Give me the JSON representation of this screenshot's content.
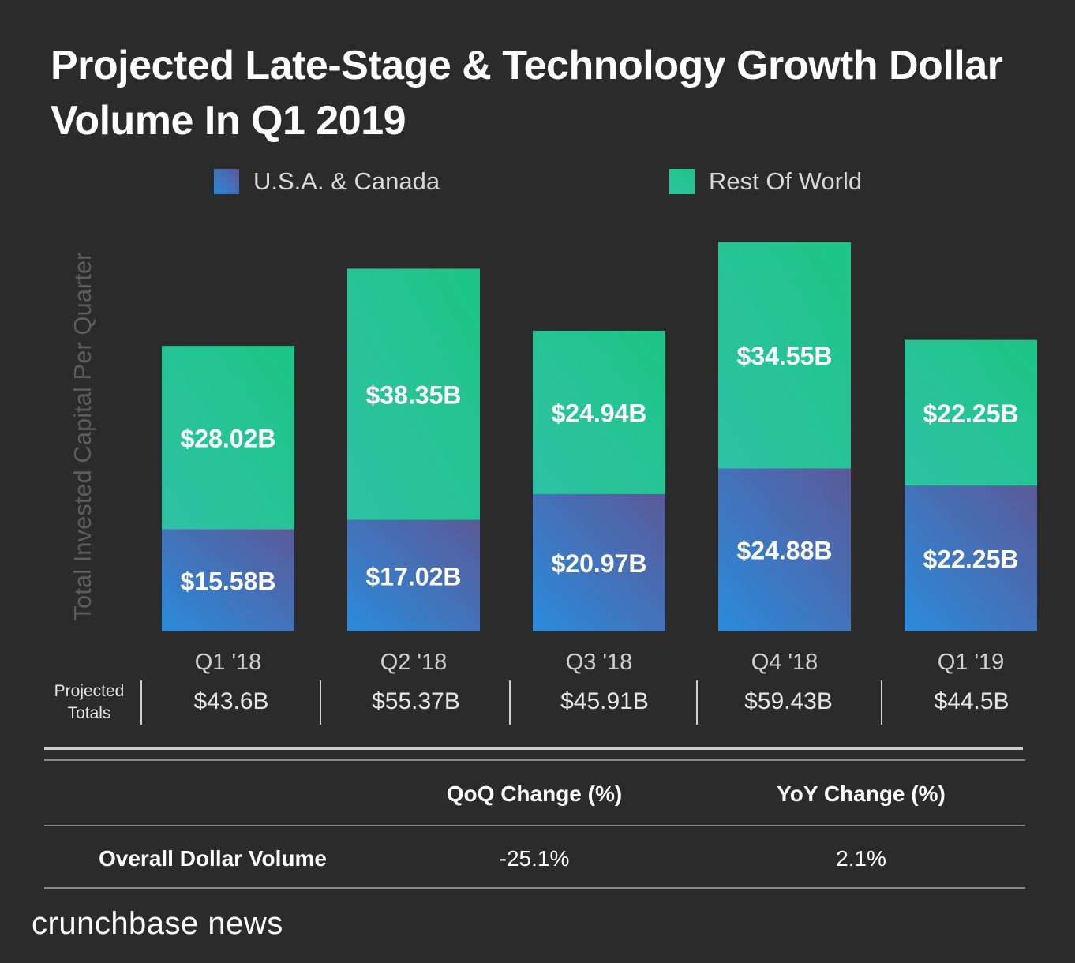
{
  "title": "Projected Late-Stage & Technology Growth Dollar Volume In Q1 2019",
  "legend": [
    {
      "label": "U.S.A. & Canada",
      "color": "#3f78c4"
    },
    {
      "label": "Rest Of World",
      "color": "#25c597"
    }
  ],
  "chart_data": {
    "type": "bar",
    "stacked": true,
    "title": "Projected Late-Stage & Technology Growth Dollar Volume In Q1 2019",
    "xlabel": "",
    "ylabel": "Total Invested Capital Per Quarter",
    "ylim": [
      0,
      65
    ],
    "categories": [
      "Q1 '18",
      "Q2 '18",
      "Q3 '18",
      "Q4 '18",
      "Q1 '19"
    ],
    "series": [
      {
        "name": "U.S.A. & Canada",
        "values": [
          15.58,
          17.02,
          20.97,
          24.88,
          22.25
        ],
        "labels": [
          "$15.58B",
          "$17.02B",
          "$20.97B",
          "$24.88B",
          "$22.25B"
        ]
      },
      {
        "name": "Rest Of World",
        "values": [
          28.02,
          38.35,
          24.94,
          34.55,
          22.25
        ],
        "labels": [
          "$28.02B",
          "$38.35B",
          "$24.94B",
          "$34.55B",
          "$22.25B"
        ]
      }
    ]
  },
  "totals": {
    "label_line1": "Projected",
    "label_line2": "Totals",
    "values": [
      "$43.6B",
      "$55.37B",
      "$45.91B",
      "$59.43B",
      "$44.5B"
    ]
  },
  "table": {
    "headers": [
      "QoQ Change (%)",
      "YoY Change (%)"
    ],
    "row_label": "Overall Dollar Volume",
    "row_values": [
      "-25.1%",
      "2.1%"
    ]
  },
  "brand": "crunchbase news"
}
